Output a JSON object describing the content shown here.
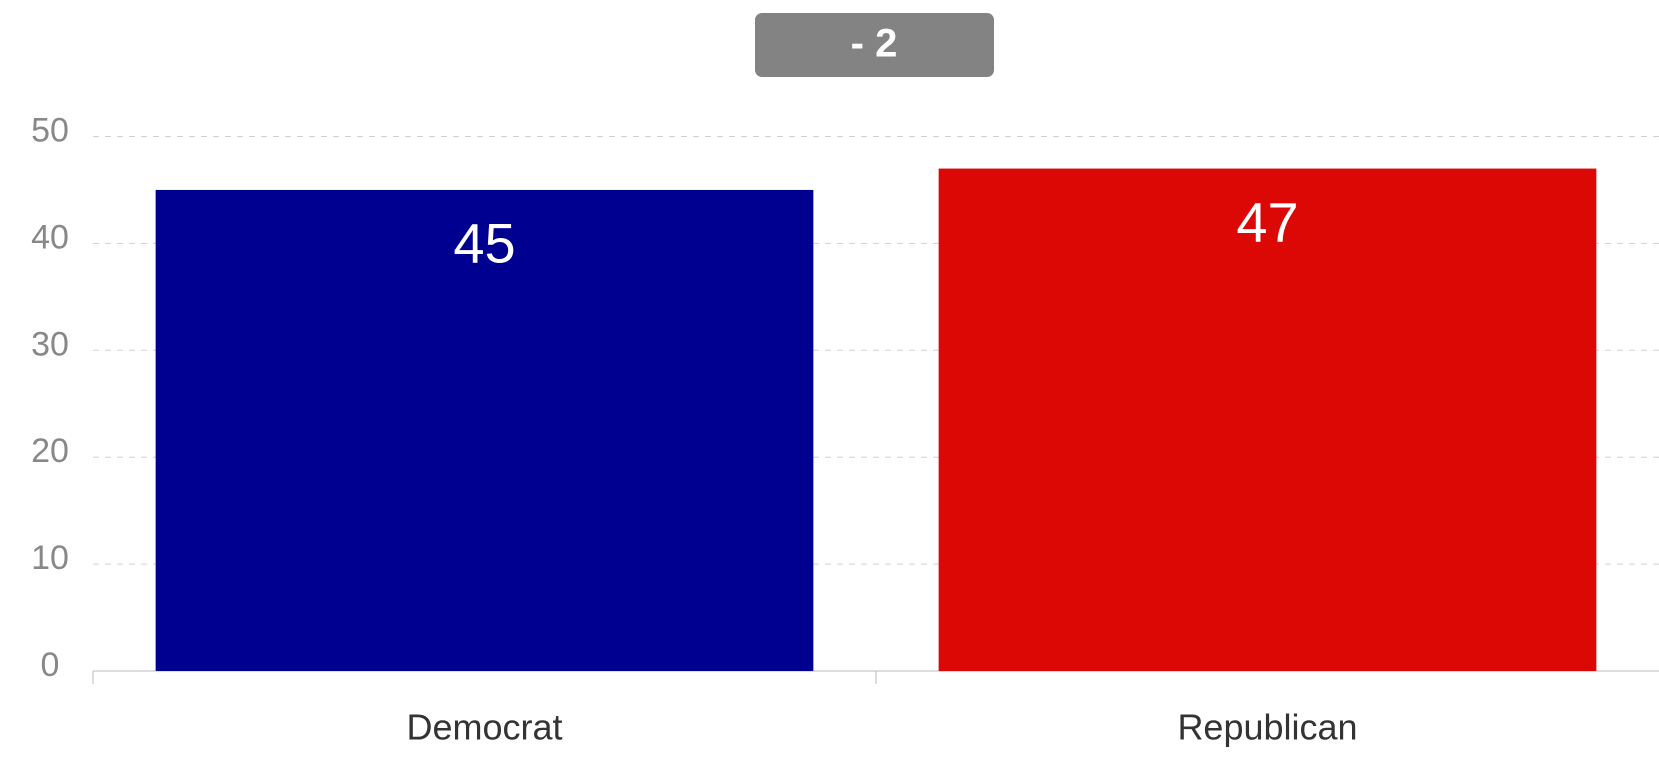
{
  "chart_data": {
    "type": "bar",
    "annotation": "- 2",
    "categories": [
      "Democrat",
      "Republican"
    ],
    "values": [
      45,
      47
    ],
    "colors": [
      "#000090",
      "#dc0806"
    ],
    "ylim": [
      0,
      50
    ],
    "yticks": [
      0,
      10,
      20,
      30,
      40,
      50
    ],
    "grid": true
  }
}
